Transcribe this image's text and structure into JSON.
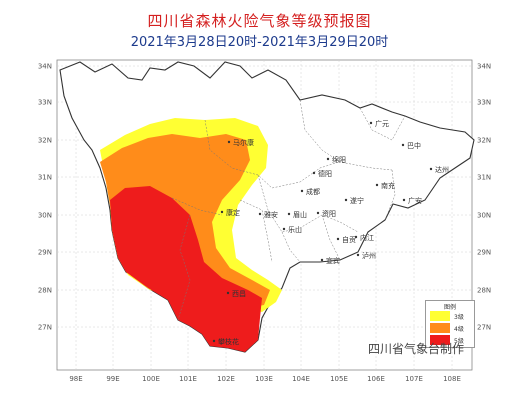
{
  "title": "四川省森林火险气象等级预报图",
  "subtitle": "2021年3月28日20时-2021年3月29日20时",
  "colors": {
    "level3": "#ffff33",
    "level4": "#ff8c1a",
    "level5": "#ee1c1c",
    "title": "#d42020",
    "subtitle": "#1c3a8c"
  },
  "axes": {
    "longitude_labels": [
      "98E",
      "99E",
      "100E",
      "101E",
      "102E",
      "103E",
      "104E",
      "105E",
      "106E",
      "107E",
      "108E"
    ],
    "latitude_labels": [
      "34N",
      "33N",
      "32N",
      "31N",
      "30N",
      "29N",
      "28N",
      "27N"
    ]
  },
  "cities": [
    {
      "name": "马尔康"
    },
    {
      "name": "广元"
    },
    {
      "name": "巴中"
    },
    {
      "name": "达州"
    },
    {
      "name": "绵阳"
    },
    {
      "name": "德阳"
    },
    {
      "name": "南充"
    },
    {
      "name": "成都"
    },
    {
      "name": "遂宁"
    },
    {
      "name": "广安"
    },
    {
      "name": "康定"
    },
    {
      "name": "雅安"
    },
    {
      "name": "眉山"
    },
    {
      "name": "资阳"
    },
    {
      "name": "乐山"
    },
    {
      "name": "自贡"
    },
    {
      "name": "内江"
    },
    {
      "name": "宜宾"
    },
    {
      "name": "泸州"
    },
    {
      "name": "西昌"
    },
    {
      "name": "攀枝花"
    }
  ],
  "legend": {
    "title": "图例",
    "items": [
      {
        "label": "3级",
        "level": 3
      },
      {
        "label": "4级",
        "level": 4
      },
      {
        "label": "5级",
        "level": 5
      }
    ]
  },
  "credit": "四川省气象台制作"
}
